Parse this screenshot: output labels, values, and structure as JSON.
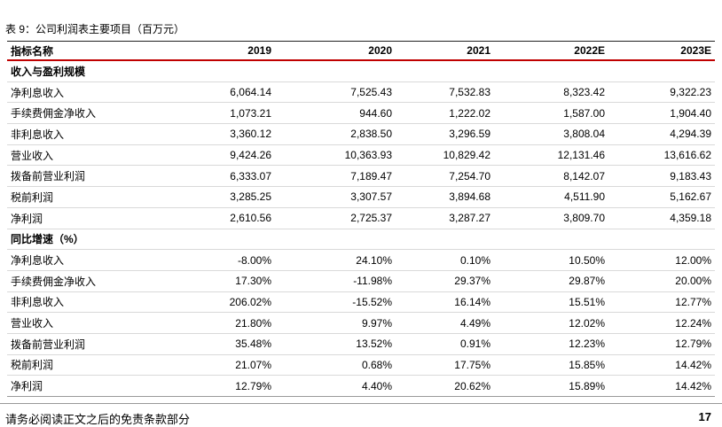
{
  "title": "表 9：公司利润表主要项目（百万元）",
  "table": {
    "header": [
      "指标名称",
      "2019",
      "2020",
      "2021",
      "2022E",
      "2023E"
    ],
    "sections": [
      {
        "name": "收入与盈利规模",
        "rows": [
          [
            "净利息收入",
            "6,064.14",
            "7,525.43",
            "7,532.83",
            "8,323.42",
            "9,322.23"
          ],
          [
            "手续费佣金净收入",
            "1,073.21",
            "944.60",
            "1,222.02",
            "1,587.00",
            "1,904.40"
          ],
          [
            "非利息收入",
            "3,360.12",
            "2,838.50",
            "3,296.59",
            "3,808.04",
            "4,294.39"
          ],
          [
            "营业收入",
            "9,424.26",
            "10,363.93",
            "10,829.42",
            "12,131.46",
            "13,616.62"
          ],
          [
            "拨备前营业利润",
            "6,333.07",
            "7,189.47",
            "7,254.70",
            "8,142.07",
            "9,183.43"
          ],
          [
            "税前利润",
            "3,285.25",
            "3,307.57",
            "3,894.68",
            "4,511.90",
            "5,162.67"
          ],
          [
            "净利润",
            "2,610.56",
            "2,725.37",
            "3,287.27",
            "3,809.70",
            "4,359.18"
          ]
        ]
      },
      {
        "name": "同比增速（%）",
        "rows": [
          [
            "净利息收入",
            "-8.00%",
            "24.10%",
            "0.10%",
            "10.50%",
            "12.00%"
          ],
          [
            "手续费佣金净收入",
            "17.30%",
            "-11.98%",
            "29.37%",
            "29.87%",
            "20.00%"
          ],
          [
            "非利息收入",
            "206.02%",
            "-15.52%",
            "16.14%",
            "15.51%",
            "12.77%"
          ],
          [
            "营业收入",
            "21.80%",
            "9.97%",
            "4.49%",
            "12.02%",
            "12.24%"
          ],
          [
            "拨备前营业利润",
            "35.48%",
            "13.52%",
            "0.91%",
            "12.23%",
            "12.79%"
          ],
          [
            "税前利润",
            "21.07%",
            "0.68%",
            "17.75%",
            "15.85%",
            "14.42%"
          ],
          [
            "净利润",
            "12.79%",
            "4.40%",
            "20.62%",
            "15.89%",
            "14.42%"
          ]
        ]
      }
    ]
  },
  "footer": {
    "text": "请务必阅读正文之后的免责条款部分",
    "page": "17"
  }
}
